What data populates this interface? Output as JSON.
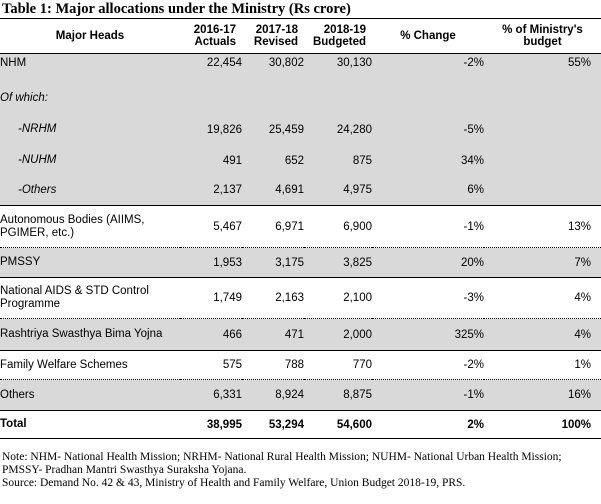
{
  "title": "Table 1: Major allocations under the Ministry (Rs crore)",
  "headers": {
    "major_heads": "Major Heads",
    "actuals": [
      "2016-17",
      "Actuals"
    ],
    "revised": [
      "2017-18",
      "Revised"
    ],
    "budgeted": [
      "2018-19",
      "Budgeted"
    ],
    "change": "% Change",
    "share": [
      "% of Ministry's",
      "budget"
    ]
  },
  "rows": [
    {
      "label": [
        "NHM"
      ],
      "a": "22,454",
      "r": "30,802",
      "b": "30,130",
      "chg": "-2%",
      "share": "55%"
    },
    {
      "label": [
        "Of which:"
      ],
      "a": "",
      "r": "",
      "b": "",
      "chg": "",
      "share": ""
    },
    {
      "label": [
        "-NRHM"
      ],
      "a": "19,826",
      "r": "25,459",
      "b": "24,280",
      "chg": "-5%",
      "share": ""
    },
    {
      "label": [
        "-NUHM"
      ],
      "a": "491",
      "r": "652",
      "b": "875",
      "chg": "34%",
      "share": ""
    },
    {
      "label": [
        "-Others"
      ],
      "a": "2,137",
      "r": "4,691",
      "b": "4,975",
      "chg": "6%",
      "share": ""
    },
    {
      "label": [
        "Autonomous Bodies (AIIMS,",
        "PGIMER, etc.)"
      ],
      "a": "5,467",
      "r": "6,971",
      "b": "6,900",
      "chg": "-1%",
      "share": "13%"
    },
    {
      "label": [
        "PMSSY"
      ],
      "a": "1,953",
      "r": "3,175",
      "b": "3,825",
      "chg": "20%",
      "share": "7%"
    },
    {
      "label": [
        "National AIDS & STD Control",
        "Programme"
      ],
      "a": "1,749",
      "r": "2,163",
      "b": "2,100",
      "chg": "-3%",
      "share": "4%"
    },
    {
      "label": [
        "Rashtriya Swasthya Bima Yojna"
      ],
      "a": "466",
      "r": "471",
      "b": "2,000",
      "chg": "325%",
      "share": "4%"
    },
    {
      "label": [
        "Family Welfare Schemes"
      ],
      "a": "575",
      "r": "788",
      "b": "770",
      "chg": "-2%",
      "share": "1%"
    },
    {
      "label": [
        "Others"
      ],
      "a": "6,331",
      "r": "8,924",
      "b": "8,875",
      "chg": "-1%",
      "share": "16%"
    }
  ],
  "total": {
    "label": "Total",
    "a": "38,995",
    "r": "53,294",
    "b": "54,600",
    "chg": "2%",
    "share": "100%"
  },
  "notes": [
    "Note: NHM- National Health Mission; NRHM- National Rural Health Mission; NUHM- National Urban Health Mission; PMSSY- Pradhan Mantri Swasthya Suraksha Yojana.",
    "Source: Demand No. 42 & 43, Ministry of Health and Family Welfare, Union Budget 2018-19, PRS."
  ]
}
